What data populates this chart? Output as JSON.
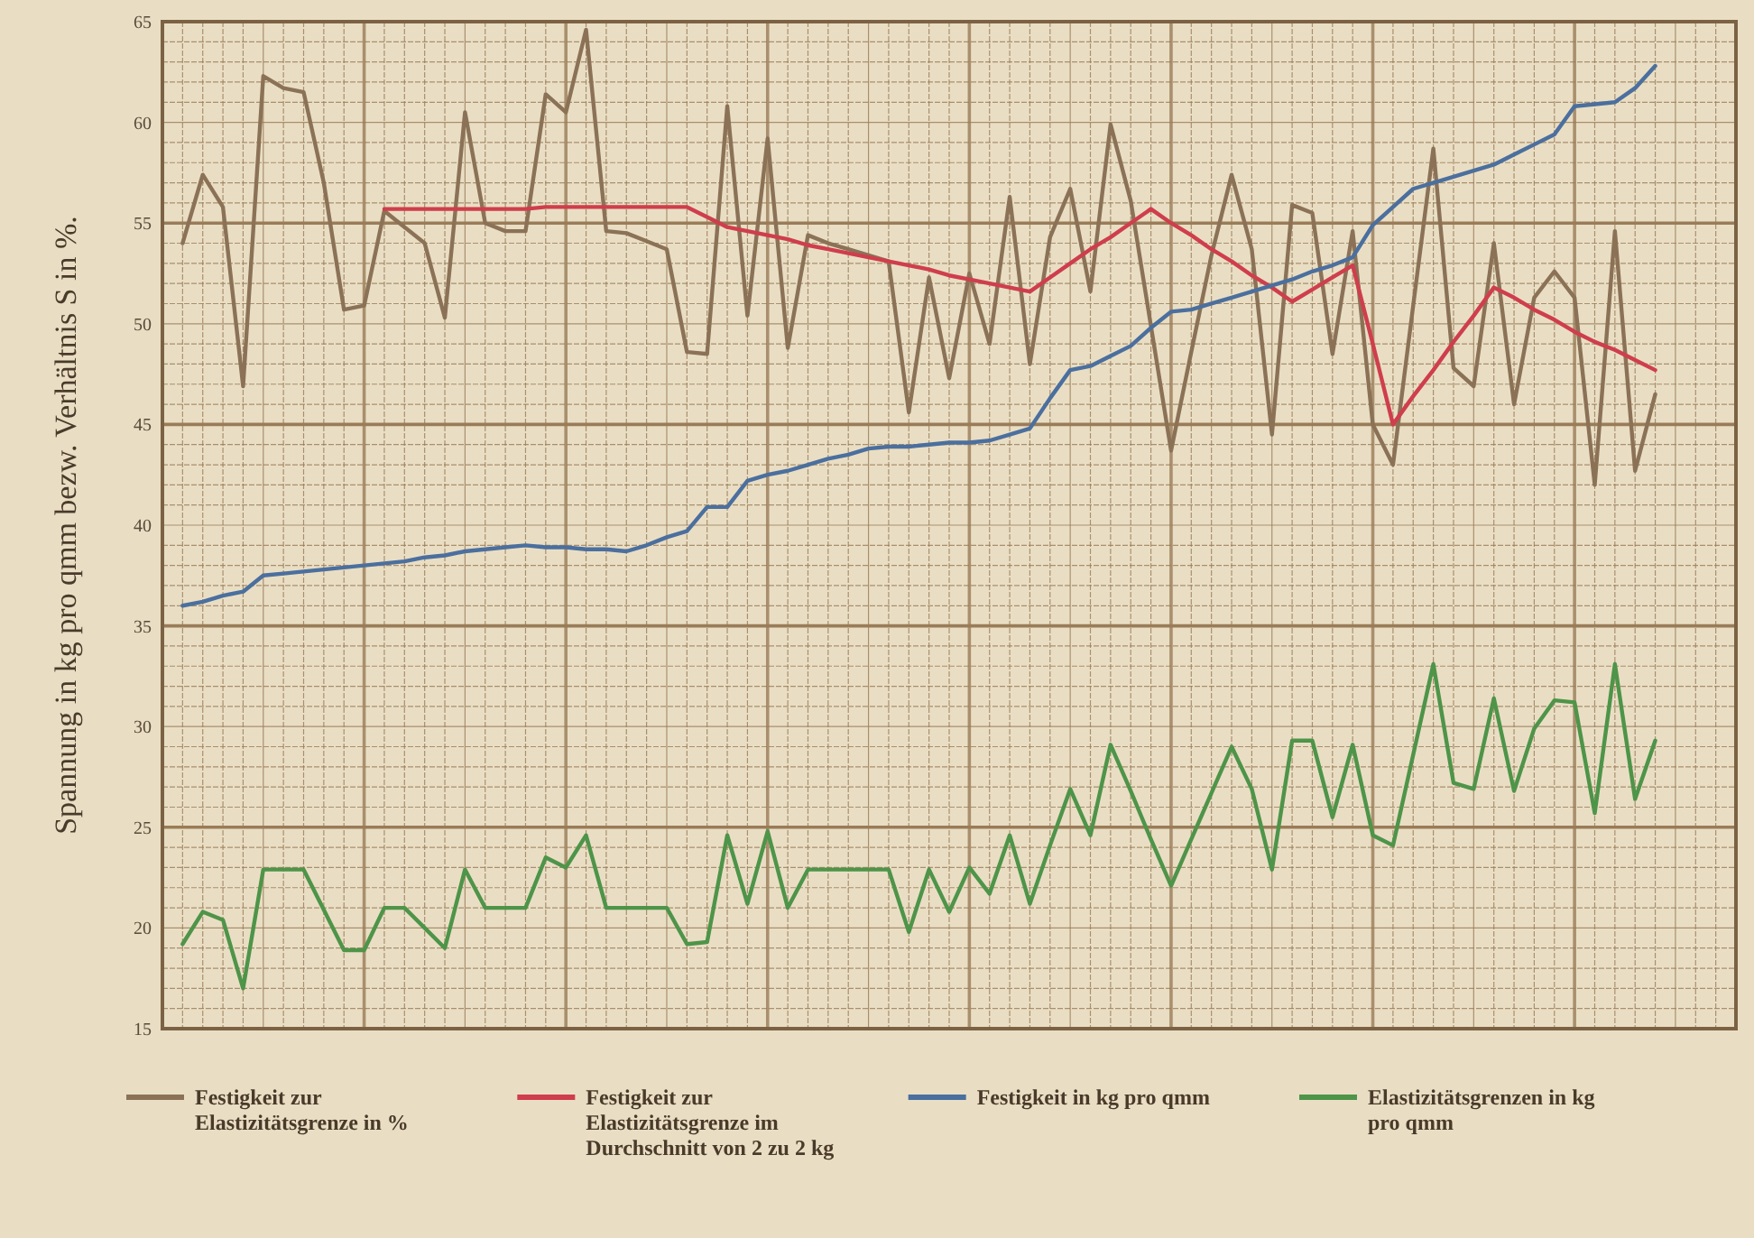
{
  "chart_data": {
    "type": "line",
    "ylabel": "Spannung in kg pro qmm bezw. Verhältnis S in %.",
    "categories": [
      null,
      null,
      null,
      null,
      null,
      null,
      null,
      null,
      null,
      null,
      null,
      null,
      null,
      null,
      null,
      null,
      null,
      null,
      null,
      null,
      null,
      null,
      null,
      null,
      null,
      null,
      null,
      null,
      null,
      null,
      null,
      null,
      null,
      null,
      null,
      null,
      null,
      null,
      null,
      null,
      null,
      null,
      null,
      null,
      null,
      null,
      null,
      null,
      null,
      null,
      null,
      null,
      null,
      null,
      null,
      null,
      null,
      null,
      null,
      null,
      null,
      null,
      null,
      null,
      null,
      null,
      null,
      null,
      null,
      null,
      null,
      null,
      null,
      null
    ],
    "ylim": [
      15,
      65
    ],
    "yticks": [
      15,
      20,
      25,
      30,
      35,
      40,
      45,
      50,
      55,
      60,
      65
    ],
    "tick_labels": "y",
    "grid": true,
    "legend": "bottom",
    "line_style": "solid",
    "marker": "none",
    "series": [
      {
        "name": "Festigkeit zur Elastizitätsgrenze in %",
        "color": "#8b7257",
        "values": [
          54.0,
          57.4,
          55.8,
          46.9,
          62.3,
          61.7,
          61.5,
          57.0,
          50.7,
          50.9,
          55.6,
          54.8,
          54.0,
          50.3,
          60.5,
          55.0,
          54.6,
          54.6,
          61.4,
          60.5,
          64.6,
          54.6,
          54.5,
          54.1,
          53.7,
          48.6,
          48.5,
          60.8,
          50.4,
          59.2,
          48.8,
          54.4,
          54.0,
          53.7,
          53.4,
          53.1,
          45.6,
          52.3,
          47.3,
          52.5,
          49.0,
          56.3,
          48.0,
          54.3,
          56.7,
          51.6,
          59.9,
          56.1,
          49.9,
          43.7,
          48.6,
          53.4,
          57.4,
          53.7,
          44.5,
          55.9,
          55.5,
          48.5,
          54.6,
          45.0,
          43.0,
          50.9,
          58.7,
          47.8,
          46.9,
          54.0,
          46.0,
          51.3,
          52.6,
          51.3,
          42.0,
          54.6,
          42.7,
          46.5
        ]
      },
      {
        "name": "Festigkeit zur Elastizitätsgrenze im Durchschnitt von 2 zu 2 kg",
        "color": "#cf3e4c",
        "values": [
          null,
          null,
          null,
          null,
          null,
          null,
          null,
          null,
          null,
          null,
          55.7,
          55.7,
          55.7,
          55.7,
          55.7,
          55.7,
          55.7,
          55.7,
          55.8,
          55.8,
          55.8,
          55.8,
          55.8,
          55.8,
          55.8,
          55.8,
          55.3,
          54.8,
          54.6,
          54.4,
          54.2,
          53.9,
          53.7,
          53.5,
          53.3,
          53.1,
          52.9,
          52.7,
          52.4,
          52.2,
          52.0,
          51.8,
          51.6,
          52.3,
          53.0,
          53.7,
          54.3,
          55.0,
          55.7,
          55.0,
          54.4,
          53.7,
          53.1,
          52.4,
          51.8,
          51.1,
          51.7,
          52.3,
          52.9,
          49.0,
          45.0,
          46.4,
          47.7,
          49.1,
          50.4,
          51.8,
          51.3,
          50.7,
          50.2,
          49.6,
          49.1,
          48.7,
          48.2,
          47.7
        ]
      },
      {
        "name": "Festigkeit in kg pro qmm",
        "color": "#4b6f9e",
        "values": [
          36.0,
          36.2,
          36.5,
          36.7,
          37.5,
          37.6,
          37.7,
          37.8,
          37.9,
          38.0,
          38.1,
          38.2,
          38.4,
          38.5,
          38.7,
          38.8,
          38.9,
          39.0,
          38.9,
          38.9,
          38.8,
          38.8,
          38.7,
          39.0,
          39.4,
          39.7,
          40.9,
          40.9,
          42.2,
          42.5,
          42.7,
          43.0,
          43.3,
          43.5,
          43.8,
          43.9,
          43.9,
          44.0,
          44.1,
          44.1,
          44.2,
          44.5,
          44.8,
          46.3,
          47.7,
          47.9,
          48.4,
          48.9,
          49.8,
          50.6,
          50.7,
          51.0,
          51.3,
          51.6,
          51.9,
          52.2,
          52.6,
          52.9,
          53.3,
          54.9,
          55.8,
          56.7,
          57.0,
          57.3,
          57.6,
          57.9,
          58.4,
          58.9,
          59.4,
          60.8,
          60.9,
          61.0,
          61.7,
          62.8
        ]
      },
      {
        "name": "Elastizitätsgrenzen in kg pro qmm",
        "color": "#4e9449",
        "values": [
          19.2,
          20.8,
          20.4,
          17.0,
          22.9,
          22.9,
          22.9,
          20.9,
          18.9,
          18.9,
          21.0,
          21.0,
          20.0,
          19.0,
          22.9,
          21.0,
          21.0,
          21.0,
          23.5,
          23.0,
          24.6,
          21.0,
          21.0,
          21.0,
          21.0,
          19.2,
          19.3,
          24.6,
          21.2,
          24.8,
          21.0,
          22.9,
          22.9,
          22.9,
          22.9,
          22.9,
          19.8,
          22.9,
          20.8,
          23.0,
          21.7,
          24.6,
          21.2,
          24.1,
          26.9,
          24.6,
          29.1,
          26.8,
          24.4,
          22.1,
          24.4,
          26.7,
          29.0,
          26.9,
          22.9,
          29.3,
          29.3,
          25.5,
          29.1,
          24.6,
          24.1,
          28.6,
          33.1,
          27.2,
          26.9,
          31.4,
          26.8,
          29.9,
          31.3,
          31.2,
          25.7,
          33.1,
          26.4,
          29.3
        ]
      }
    ]
  }
}
